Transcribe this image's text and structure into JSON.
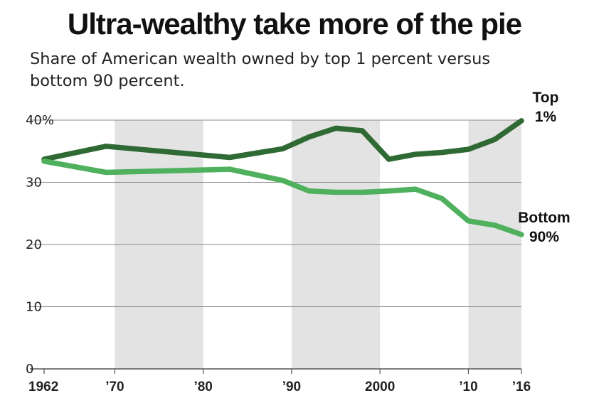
{
  "chart_data": {
    "type": "line",
    "title": "Ultra-wealthy take more of the pie",
    "subtitle": "Share of American wealth owned by top 1 percent versus bottom 90 percent.",
    "xlabel": "",
    "ylabel": "",
    "xlim": [
      1962,
      2016
    ],
    "ylim": [
      0,
      40
    ],
    "grid": true,
    "y_ticks": [
      {
        "value": 40,
        "label": "40%"
      },
      {
        "value": 30,
        "label": "30"
      },
      {
        "value": 20,
        "label": "20"
      },
      {
        "value": 10,
        "label": "10"
      },
      {
        "value": 0,
        "label": "0"
      }
    ],
    "x_ticks": [
      {
        "value": 1962,
        "label": "1962"
      },
      {
        "value": 1970,
        "label": "’70"
      },
      {
        "value": 1980,
        "label": "’80"
      },
      {
        "value": 1990,
        "label": "’90"
      },
      {
        "value": 2000,
        "label": "2000"
      },
      {
        "value": 2010,
        "label": "’10"
      },
      {
        "value": 2016,
        "label": "’16"
      }
    ],
    "shaded_bands": [
      [
        1970,
        1980
      ],
      [
        1990,
        2000
      ],
      [
        2010,
        2016
      ]
    ],
    "series": [
      {
        "name": "Top 1%",
        "label_lines": [
          "Top",
          "1%"
        ],
        "color": "#2f6a35",
        "x": [
          1962,
          1969,
          1983,
          1989,
          1992,
          1995,
          1998,
          2001,
          2004,
          2007,
          2010,
          2013,
          2016
        ],
        "values": [
          33.7,
          35.8,
          34.0,
          35.4,
          37.3,
          38.7,
          38.3,
          33.7,
          34.5,
          34.8,
          35.3,
          36.9,
          39.9
        ]
      },
      {
        "name": "Bottom 90%",
        "label_lines": [
          "Bottom",
          "90%"
        ],
        "color": "#4fb15e",
        "x": [
          1962,
          1969,
          1983,
          1989,
          1992,
          1995,
          1998,
          2001,
          2004,
          2007,
          2010,
          2013,
          2016
        ],
        "values": [
          33.4,
          31.6,
          32.1,
          30.3,
          28.6,
          28.4,
          28.4,
          28.6,
          28.9,
          27.4,
          23.8,
          23.1,
          21.6
        ]
      }
    ]
  }
}
